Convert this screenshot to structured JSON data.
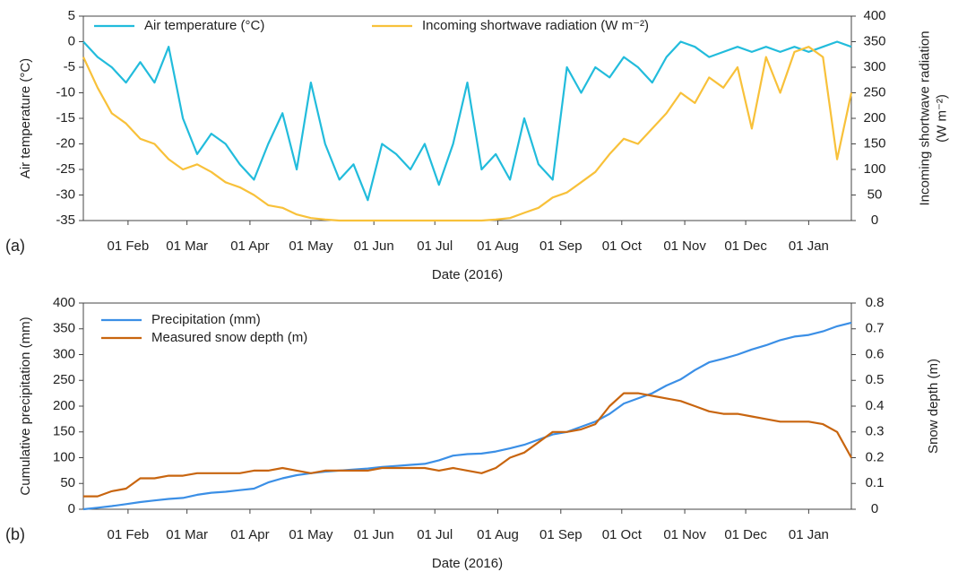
{
  "chart_data": [
    {
      "type": "line",
      "panel_label": "(a)",
      "xlabel": "Date (2016)",
      "ylabel": "Air temperature (°C)",
      "y2label": [
        "Incoming shortwave radiation",
        "(W m⁻²)"
      ],
      "legend": "top",
      "xlim": [
        "2016-01-10",
        "2017-01-22"
      ],
      "xticks": [
        {
          "value": "2016-02-01",
          "label": "01 Feb"
        },
        {
          "value": "2016-03-01",
          "label": "01 Mar"
        },
        {
          "value": "2016-04-01",
          "label": "01 Apr"
        },
        {
          "value": "2016-05-01",
          "label": "01 May"
        },
        {
          "value": "2016-06-01",
          "label": "01 Jun"
        },
        {
          "value": "2016-07-01",
          "label": "01 Jul"
        },
        {
          "value": "2016-08-01",
          "label": "01 Aug"
        },
        {
          "value": "2016-09-01",
          "label": "01 Sep"
        },
        {
          "value": "2016-10-01",
          "label": "01 Oct"
        },
        {
          "value": "2016-11-01",
          "label": "01 Nov"
        },
        {
          "value": "2016-12-01",
          "label": "01 Dec"
        },
        {
          "value": "2017-01-01",
          "label": "01 Jan"
        }
      ],
      "ylim": [
        -35,
        5
      ],
      "yticks": [
        -35,
        -30,
        -25,
        -20,
        -15,
        -10,
        -5,
        0,
        5
      ],
      "y2lim": [
        0,
        400
      ],
      "y2ticks": [
        0,
        50,
        100,
        150,
        200,
        250,
        300,
        350,
        400
      ],
      "x": [
        "2016-01-10",
        "2016-01-17",
        "2016-01-24",
        "2016-01-31",
        "2016-02-07",
        "2016-02-14",
        "2016-02-21",
        "2016-02-28",
        "2016-03-06",
        "2016-03-13",
        "2016-03-20",
        "2016-03-27",
        "2016-04-03",
        "2016-04-10",
        "2016-04-17",
        "2016-04-24",
        "2016-05-01",
        "2016-05-08",
        "2016-05-15",
        "2016-05-22",
        "2016-05-29",
        "2016-06-05",
        "2016-06-12",
        "2016-06-19",
        "2016-06-26",
        "2016-07-03",
        "2016-07-10",
        "2016-07-17",
        "2016-07-24",
        "2016-07-31",
        "2016-08-07",
        "2016-08-14",
        "2016-08-21",
        "2016-08-28",
        "2016-09-04",
        "2016-09-11",
        "2016-09-18",
        "2016-09-25",
        "2016-10-02",
        "2016-10-09",
        "2016-10-16",
        "2016-10-23",
        "2016-10-30",
        "2016-11-06",
        "2016-11-13",
        "2016-11-20",
        "2016-11-27",
        "2016-12-04",
        "2016-12-11",
        "2016-12-18",
        "2016-12-25",
        "2017-01-01",
        "2017-01-08",
        "2017-01-15",
        "2017-01-22"
      ],
      "series": [
        {
          "name": "Air temperature (°C)",
          "color": "#22bcdc",
          "axis": "y",
          "values": [
            0,
            -3,
            -5,
            -8,
            -4,
            -8,
            -1,
            -15,
            -22,
            -18,
            -20,
            -24,
            -27,
            -20,
            -14,
            -25,
            -8,
            -20,
            -27,
            -24,
            -31,
            -20,
            -22,
            -25,
            -20,
            -28,
            -20,
            -8,
            -25,
            -22,
            -27,
            -15,
            -24,
            -27,
            -5,
            -10,
            -5,
            -7,
            -3,
            -5,
            -8,
            -3,
            0,
            -1,
            -3,
            -2,
            -1,
            -2,
            -1,
            -2,
            -1,
            -2,
            -1,
            0,
            -1
          ]
        },
        {
          "name": "Incoming shortwave radiation (W m⁻²)",
          "color": "#f8c13a",
          "axis": "y2",
          "values": [
            320,
            260,
            210,
            190,
            160,
            150,
            120,
            100,
            110,
            95,
            75,
            65,
            50,
            30,
            25,
            12,
            5,
            2,
            0,
            0,
            0,
            0,
            0,
            0,
            0,
            0,
            0,
            0,
            0,
            2,
            5,
            15,
            25,
            45,
            55,
            75,
            95,
            130,
            160,
            150,
            180,
            210,
            250,
            230,
            280,
            260,
            300,
            180,
            320,
            250,
            330,
            340,
            320,
            120,
            250
          ]
        }
      ]
    },
    {
      "type": "line",
      "panel_label": "(b)",
      "xlabel": "Date (2016)",
      "ylabel": "Cumulative precipitation (mm)",
      "y2label": [
        "Snow depth (m)"
      ],
      "legend": "upper left",
      "xlim": [
        "2016-01-10",
        "2017-01-22"
      ],
      "xticks": [
        {
          "value": "2016-02-01",
          "label": "01 Feb"
        },
        {
          "value": "2016-03-01",
          "label": "01 Mar"
        },
        {
          "value": "2016-04-01",
          "label": "01 Apr"
        },
        {
          "value": "2016-05-01",
          "label": "01 May"
        },
        {
          "value": "2016-06-01",
          "label": "01 Jun"
        },
        {
          "value": "2016-07-01",
          "label": "01 Jul"
        },
        {
          "value": "2016-08-01",
          "label": "01 Aug"
        },
        {
          "value": "2016-09-01",
          "label": "01 Sep"
        },
        {
          "value": "2016-10-01",
          "label": "01 Oct"
        },
        {
          "value": "2016-11-01",
          "label": "01 Nov"
        },
        {
          "value": "2016-12-01",
          "label": "01 Dec"
        },
        {
          "value": "2017-01-01",
          "label": "01 Jan"
        }
      ],
      "ylim": [
        0,
        400
      ],
      "yticks": [
        0,
        50,
        100,
        150,
        200,
        250,
        300,
        350,
        400
      ],
      "y2lim": [
        0,
        0.8
      ],
      "y2ticks": [
        0,
        0.1,
        0.2,
        0.3,
        0.4,
        0.5,
        0.6,
        0.7,
        0.8
      ],
      "x": [
        "2016-01-10",
        "2016-01-17",
        "2016-01-24",
        "2016-01-31",
        "2016-02-07",
        "2016-02-14",
        "2016-02-21",
        "2016-02-28",
        "2016-03-06",
        "2016-03-13",
        "2016-03-20",
        "2016-03-27",
        "2016-04-03",
        "2016-04-10",
        "2016-04-17",
        "2016-04-24",
        "2016-05-01",
        "2016-05-08",
        "2016-05-15",
        "2016-05-22",
        "2016-05-29",
        "2016-06-05",
        "2016-06-12",
        "2016-06-19",
        "2016-06-26",
        "2016-07-03",
        "2016-07-10",
        "2016-07-17",
        "2016-07-24",
        "2016-07-31",
        "2016-08-07",
        "2016-08-14",
        "2016-08-21",
        "2016-08-28",
        "2016-09-04",
        "2016-09-11",
        "2016-09-18",
        "2016-09-25",
        "2016-10-02",
        "2016-10-09",
        "2016-10-16",
        "2016-10-23",
        "2016-10-30",
        "2016-11-06",
        "2016-11-13",
        "2016-11-20",
        "2016-11-27",
        "2016-12-04",
        "2016-12-11",
        "2016-12-18",
        "2016-12-25",
        "2017-01-01",
        "2017-01-08",
        "2017-01-15",
        "2017-01-22"
      ],
      "series": [
        {
          "name": "Precipitation (mm)",
          "color": "#3b8fe6",
          "axis": "y",
          "values": [
            0,
            3,
            6,
            10,
            14,
            17,
            20,
            22,
            28,
            32,
            34,
            37,
            40,
            52,
            60,
            66,
            70,
            73,
            75,
            77,
            79,
            82,
            84,
            86,
            88,
            95,
            104,
            107,
            108,
            112,
            118,
            125,
            135,
            145,
            150,
            160,
            170,
            185,
            205,
            215,
            225,
            240,
            252,
            270,
            285,
            292,
            300,
            310,
            318,
            328,
            335,
            338,
            345,
            355,
            362
          ]
        },
        {
          "name": "Measured snow depth (m)",
          "color": "#c8650f",
          "axis": "y2",
          "values": [
            0.05,
            0.05,
            0.07,
            0.08,
            0.12,
            0.12,
            0.13,
            0.13,
            0.14,
            0.14,
            0.14,
            0.14,
            0.15,
            0.15,
            0.16,
            0.15,
            0.14,
            0.15,
            0.15,
            0.15,
            0.15,
            0.16,
            0.16,
            0.16,
            0.16,
            0.15,
            0.16,
            0.15,
            0.14,
            0.16,
            0.2,
            0.22,
            0.26,
            0.3,
            0.3,
            0.31,
            0.33,
            0.4,
            0.45,
            0.45,
            0.44,
            0.43,
            0.42,
            0.4,
            0.38,
            0.37,
            0.37,
            0.36,
            0.35,
            0.34,
            0.34,
            0.34,
            0.33,
            0.3,
            0.2
          ]
        }
      ]
    }
  ]
}
